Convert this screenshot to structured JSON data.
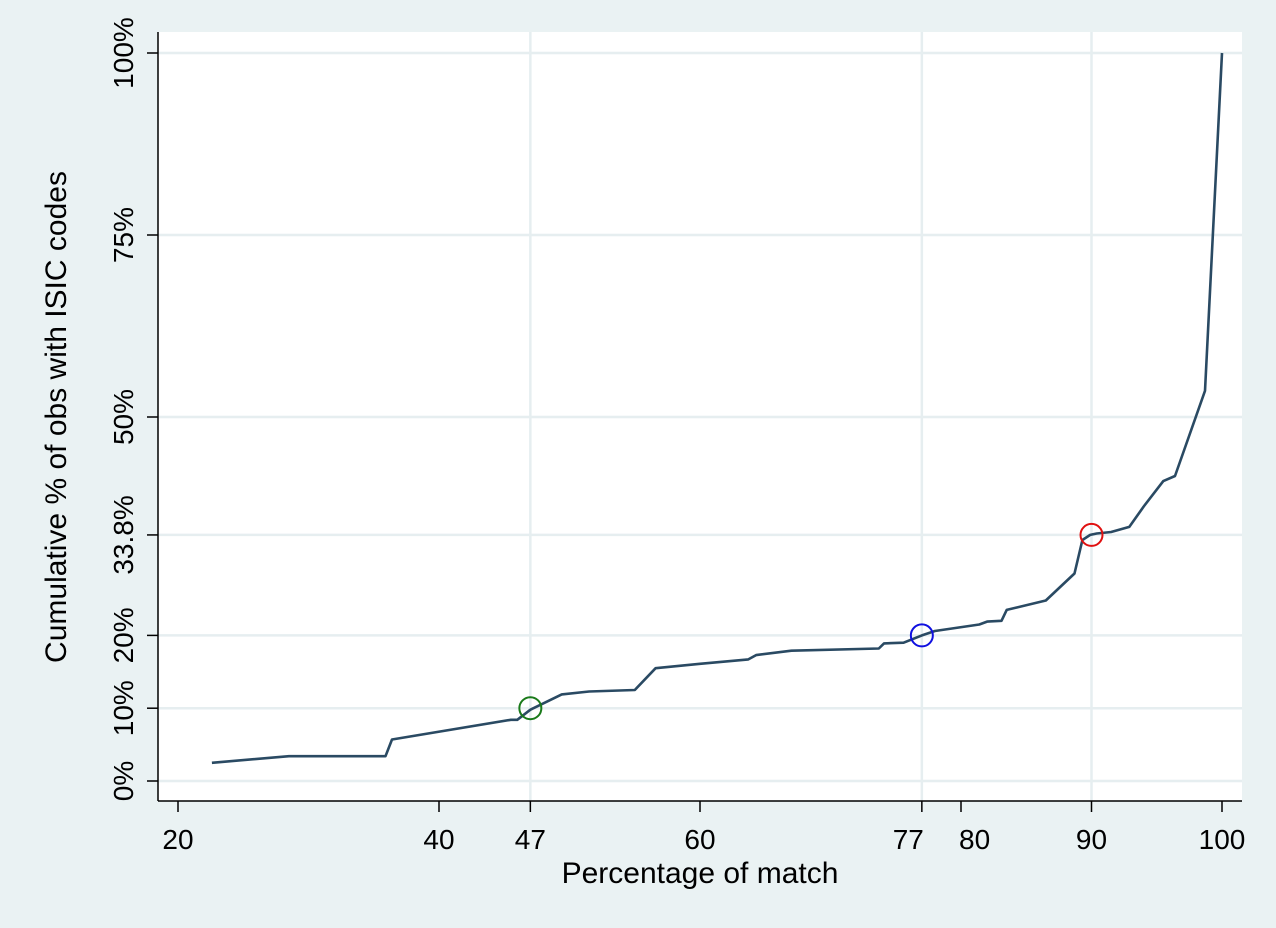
{
  "chart_data": {
    "type": "line",
    "title": "",
    "xlabel": "Percentage of match",
    "ylabel": "Cumulative % of obs with ISIC codes",
    "xlim": [
      20,
      100
    ],
    "ylim": [
      0,
      100
    ],
    "grid": true,
    "legend": "none",
    "x_ticks": [
      {
        "value": 20,
        "label": "20"
      },
      {
        "value": 40,
        "label": "40"
      },
      {
        "value": 47,
        "label": "47"
      },
      {
        "value": 60,
        "label": "60"
      },
      {
        "value": 77,
        "label": "77"
      },
      {
        "value": 80,
        "label": "80"
      },
      {
        "value": 90,
        "label": "90"
      },
      {
        "value": 100,
        "label": "100"
      }
    ],
    "y_ticks": [
      {
        "value": 0,
        "label": "0%"
      },
      {
        "value": 10,
        "label": "10%"
      },
      {
        "value": 20,
        "label": "20%"
      },
      {
        "value": 33.8,
        "label": "33.8%"
      },
      {
        "value": 50,
        "label": "50%"
      },
      {
        "value": 75,
        "label": "75%"
      },
      {
        "value": 100,
        "label": "100%"
      }
    ],
    "series": [
      {
        "color": "#2a4a63",
        "x": [
          22.6,
          28.5,
          35.9,
          36.4,
          45.5,
          46.0,
          47.0,
          49.4,
          51.5,
          55.0,
          56.6,
          60.0,
          63.7,
          64.3,
          67.0,
          73.7,
          74.1,
          75.6,
          77.0,
          78.0,
          81.4,
          82.0,
          83.1,
          83.5,
          86.5,
          88.7,
          89.3,
          89.9,
          90.4,
          91.5,
          92.9,
          94.0,
          95.5,
          96.4,
          98.7,
          100.0
        ],
        "y": [
          2.5,
          3.4,
          3.4,
          5.7,
          8.4,
          8.4,
          9.8,
          11.9,
          12.3,
          12.5,
          15.5,
          16.1,
          16.7,
          17.3,
          17.9,
          18.2,
          18.9,
          19.0,
          20.0,
          20.6,
          21.5,
          21.9,
          22.0,
          23.5,
          24.8,
          28.5,
          33.1,
          33.8,
          34.0,
          34.2,
          34.9,
          37.7,
          41.2,
          41.9,
          53.6,
          100.0
        ]
      }
    ],
    "markers": [
      {
        "x": 47,
        "y": 10,
        "color": "#1a7a1a"
      },
      {
        "x": 77,
        "y": 20,
        "color": "#1010e0"
      },
      {
        "x": 90,
        "y": 33.8,
        "color": "#e01010"
      }
    ]
  }
}
